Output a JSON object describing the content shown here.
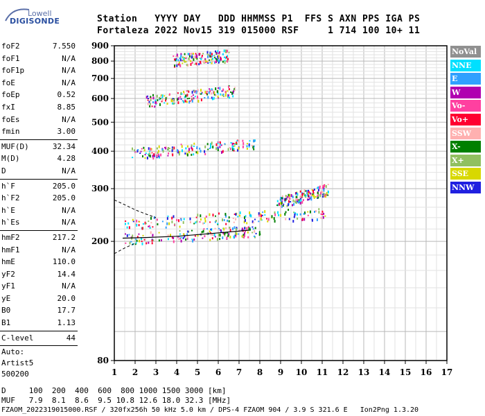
{
  "logo": {
    "line1": "Lowell",
    "line2": "DIGISONDE"
  },
  "header": {
    "line1": "Station   YYYY DAY   DDD HHMMSS P1  FFS S AXN PPS IGA PS",
    "line2": "Fortaleza 2022 Nov15 319 015000 RSF     1 714 100 10+ 11"
  },
  "params_group1": [
    {
      "label": "foF2",
      "value": "7.550"
    },
    {
      "label": "foF1",
      "value": "N/A"
    },
    {
      "label": "foF1p",
      "value": "N/A"
    },
    {
      "label": "foE",
      "value": "N/A"
    },
    {
      "label": "foEp",
      "value": "0.52"
    },
    {
      "label": "fxI",
      "value": "8.85"
    },
    {
      "label": "foEs",
      "value": "N/A"
    },
    {
      "label": "fmin",
      "value": "3.00"
    }
  ],
  "params_group2": [
    {
      "label": "MUF(D)",
      "value": "32.34"
    },
    {
      "label": "M(D)",
      "value": "4.28"
    },
    {
      "label": "D",
      "value": "N/A"
    }
  ],
  "params_group3": [
    {
      "label": "h`F",
      "value": "205.0"
    },
    {
      "label": "h`F2",
      "value": "205.0"
    },
    {
      "label": "h`E",
      "value": "N/A"
    },
    {
      "label": "h`Es",
      "value": "N/A"
    }
  ],
  "params_group4": [
    {
      "label": "hmF2",
      "value": "217.2"
    },
    {
      "label": "hmF1",
      "value": "N/A"
    },
    {
      "label": "hmE",
      "value": "110.0"
    },
    {
      "label": "yF2",
      "value": "14.4"
    },
    {
      "label": "yF1",
      "value": "N/A"
    },
    {
      "label": "yE",
      "value": "20.0"
    },
    {
      "label": "B0",
      "value": "17.7"
    },
    {
      "label": "B1",
      "value": "1.13"
    }
  ],
  "params_group5": [
    {
      "label": "C-level",
      "value": "44"
    }
  ],
  "scaling": {
    "line1": "Auto:",
    "line2": "Artist5",
    "line3": "500200"
  },
  "legend": [
    {
      "label": "NoVal",
      "color": "#909090"
    },
    {
      "label": "NNE",
      "color": "#00e0ff"
    },
    {
      "label": "E",
      "color": "#30a0ff"
    },
    {
      "label": "W",
      "color": "#b000b0"
    },
    {
      "label": "Vo-",
      "color": "#ff40a0"
    },
    {
      "label": "Vo+",
      "color": "#ff0030"
    },
    {
      "label": "SSW",
      "color": "#ffb0b0"
    },
    {
      "label": "X-",
      "color": "#008000"
    },
    {
      "label": "X+",
      "color": "#90c060"
    },
    {
      "label": "SSE",
      "color": "#d8d800"
    },
    {
      "label": "NNW",
      "color": "#2020e0"
    }
  ],
  "muf_table": {
    "line1": "D     100  200  400  600  800 1000 1500 3000 [km]",
    "line2": "MUF   7.9  8.1  8.6  9.5 10.8 12.6 18.0 32.3 [MHz]"
  },
  "footer": "FZAOM_2022319015000.RSF / 320fx256h 50 kHz 5.0 km / DPS-4 FZAOM 904 / 3.9 S 321.6 E   Ion2Png 1.3.20",
  "chart_data": {
    "type": "scatter",
    "title": "",
    "xlabel": "",
    "ylabel": "",
    "xlim": [
      1,
      17
    ],
    "ylim": [
      80,
      900
    ],
    "x_scale": "linear",
    "y_scale": "log",
    "x_ticks": [
      1,
      2,
      3,
      4,
      5,
      6,
      7,
      8,
      9,
      10,
      11,
      12,
      13,
      14,
      15,
      16,
      17
    ],
    "y_ticks": [
      80,
      200,
      300,
      400,
      500,
      600,
      700,
      800,
      900
    ],
    "grid": true,
    "legend_placement": "right",
    "profile_solid": {
      "x": [
        1.4,
        2.5,
        4,
        5.5,
        7.5
      ],
      "y": [
        205,
        206,
        208,
        212,
        218
      ]
    },
    "profile_dashed": [
      {
        "x": [
          1.0,
          1.5,
          2.0,
          2.5,
          3.0
        ],
        "y": [
          275,
          265,
          255,
          247,
          240
        ]
      },
      {
        "x": [
          1.0,
          1.5,
          2.0
        ],
        "y": [
          182,
          190,
          197
        ]
      }
    ],
    "traces": [
      {
        "name": "F2 O/X echo",
        "x_start": 1.5,
        "x_end": 8.0,
        "y_start": 205,
        "y_end": 218
      },
      {
        "name": "F2 spread",
        "x_start": 1.5,
        "x_end": 11.2,
        "y_start": 230,
        "y_end": 250
      },
      {
        "name": "2nd hop",
        "x_start": 1.8,
        "x_end": 7.8,
        "y_start": 395,
        "y_end": 425
      },
      {
        "name": "3rd hop",
        "x_start": 2.5,
        "x_end": 6.8,
        "y_start": 590,
        "y_end": 640
      },
      {
        "name": "4th hop",
        "x_start": 3.8,
        "x_end": 6.5,
        "y_start": 810,
        "y_end": 840
      },
      {
        "name": "spread F cluster",
        "x_start": 8.8,
        "x_end": 11.3,
        "y_start": 270,
        "y_end": 300
      }
    ]
  }
}
